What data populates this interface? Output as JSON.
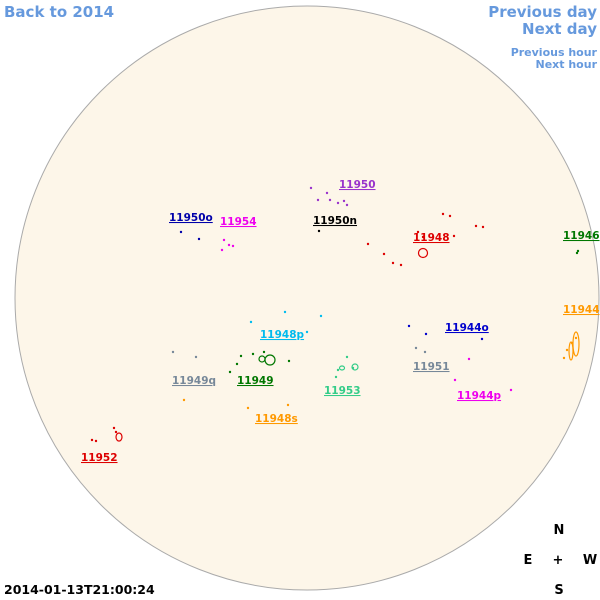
{
  "nav": {
    "back": "Back to 2014",
    "previous_day": "Previous day",
    "next_day": "Next day",
    "previous_hour": "Previous hour",
    "next_hour": "Next hour"
  },
  "regions": [
    {
      "label": "11950",
      "color": "#9933cc"
    },
    {
      "label": "11950o",
      "color": "#0000aa"
    },
    {
      "label": "11954",
      "color": "#ee00ee"
    },
    {
      "label": "11950n",
      "color": "#000000"
    },
    {
      "label": "11948",
      "color": "#dd0000"
    },
    {
      "label": "11946",
      "color": "#007700"
    },
    {
      "label": "11944",
      "color": "#ff9900"
    },
    {
      "label": "11948p",
      "color": "#00bbee"
    },
    {
      "label": "11944o",
      "color": "#0000cc"
    },
    {
      "label": "11951",
      "color": "#778899"
    },
    {
      "label": "11949q",
      "color": "#778899"
    },
    {
      "label": "11949",
      "color": "#007700"
    },
    {
      "label": "11953",
      "color": "#33cc88"
    },
    {
      "label": "11944p",
      "color": "#ee00ee"
    },
    {
      "label": "11948s",
      "color": "#ff9900"
    },
    {
      "label": "11952",
      "color": "#dd0000"
    }
  ],
  "timestamp": "2014-01-13T21:00:24",
  "compass": {
    "north": "N",
    "east": "E",
    "center": "+",
    "west": "W",
    "south": "S"
  }
}
